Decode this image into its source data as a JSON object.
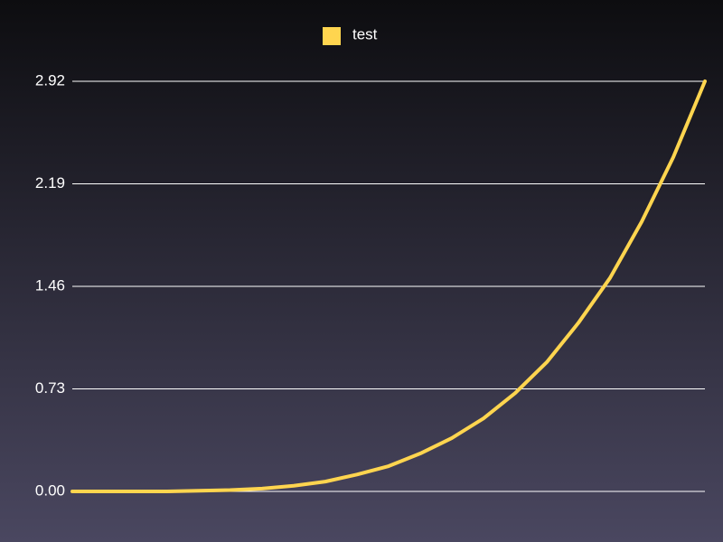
{
  "chart_data": {
    "type": "line",
    "x": [
      0,
      1,
      2,
      3,
      4,
      5,
      6,
      7,
      8,
      9,
      10,
      11,
      12,
      13,
      14,
      15,
      16,
      17,
      18,
      19,
      20
    ],
    "xlim": [
      0,
      20
    ],
    "series": [
      {
        "name": "test",
        "color": "#ffd54f",
        "values": [
          0,
          0,
          0,
          0,
          0.005,
          0.01,
          0.02,
          0.04,
          0.07,
          0.12,
          0.18,
          0.27,
          0.38,
          0.52,
          0.7,
          0.92,
          1.2,
          1.52,
          1.92,
          2.38,
          2.92
        ]
      }
    ],
    "ylim": [
      0,
      2.92
    ],
    "yticks": [
      {
        "value": 0,
        "label": "0.00"
      },
      0.73,
      1.46,
      2.19,
      2.92
    ],
    "grid": true,
    "legend": "top"
  }
}
